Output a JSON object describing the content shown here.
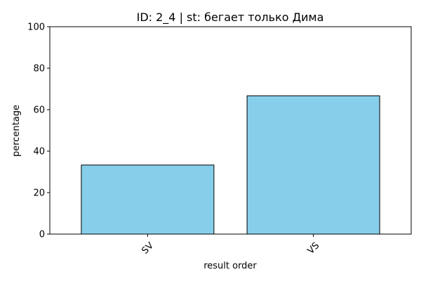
{
  "chart_data": {
    "type": "bar",
    "title": "ID: 2_4 | st: бегает только Дима",
    "xlabel": "result order",
    "ylabel": "percentage",
    "categories": [
      "SV",
      "VS"
    ],
    "values": [
      33.3,
      66.7
    ],
    "ylim": [
      0,
      100
    ],
    "yticks": [
      0,
      20,
      40,
      60,
      80,
      100
    ],
    "grid": false,
    "legend": "none",
    "bar_color": "#87CEEB",
    "bar_edge_color": "#000000"
  }
}
